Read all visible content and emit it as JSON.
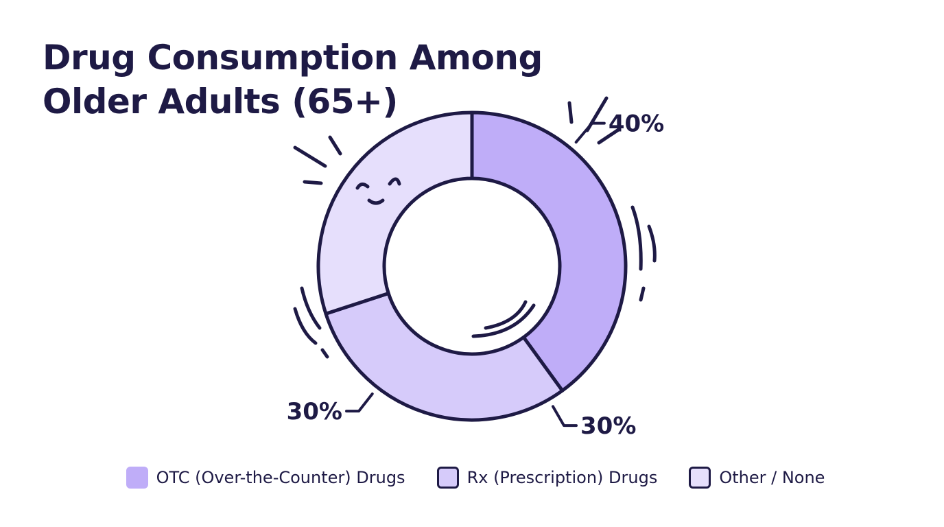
{
  "title": {
    "line1": "Drug Consumption Among",
    "line2": "Older Adults (65+)"
  },
  "chart_data": {
    "type": "pie",
    "variant": "donut",
    "categories": [
      "OTC (Over-the-Counter) Drugs",
      "Rx (Prescription) Drugs",
      "Other / None"
    ],
    "values": [
      40,
      30,
      30
    ],
    "labels": [
      "40%",
      "30%",
      "30%"
    ],
    "colors": [
      "#bfadf8",
      "#d6cbfa",
      "#e6dffc"
    ],
    "legend_position": "bottom"
  },
  "legend": [
    {
      "label": "OTC (Over-the-Counter) Drugs",
      "color": "#bfadf8",
      "outlined": false
    },
    {
      "label": "Rx (Prescription) Drugs",
      "color": "#d6cbfa",
      "outlined": true
    },
    {
      "label": "Other / None",
      "color": "#e6dffc",
      "outlined": true
    }
  ],
  "colors": {
    "ink": "#1e1a45",
    "background": "#ffffff"
  }
}
